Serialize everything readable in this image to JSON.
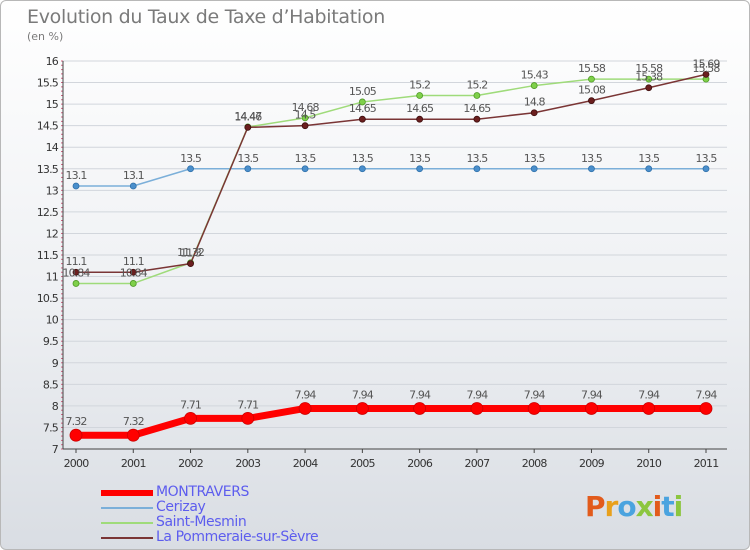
{
  "title": "Evolution du Taux de Taxe d’Habitation",
  "subtitle": "(en %)",
  "logo": {
    "text": "Proxiti",
    "colors": [
      "#e25b1c",
      "#e8a01c",
      "#4aa3df",
      "#8cc63f",
      "#e25b1c",
      "#4aa3df",
      "#8cc63f"
    ]
  },
  "chart_data": {
    "type": "line",
    "x": [
      "2000",
      "2001",
      "2002",
      "2003",
      "2004",
      "2005",
      "2006",
      "2007",
      "2008",
      "2009",
      "2010",
      "2011"
    ],
    "y_ticks": [
      7,
      7.5,
      8,
      8.5,
      9,
      9.5,
      10,
      10.5,
      11,
      11.5,
      12,
      12.5,
      13,
      13.5,
      14,
      14.5,
      15,
      15.5,
      16
    ],
    "ylim": [
      7,
      16
    ],
    "grid": "horizontal",
    "legend": "bottom-left",
    "series": [
      {
        "name": "MONTRAVERS",
        "color": "#ff0000",
        "values": [
          7.32,
          7.32,
          7.71,
          7.71,
          7.94,
          7.94,
          7.94,
          7.94,
          7.94,
          7.94,
          7.94,
          7.94
        ],
        "labels": [
          "7.32",
          "7.32",
          "7.71",
          "7.71",
          "7.94",
          "7.94",
          "7.94",
          "7.94",
          "7.94",
          "7.94",
          "7.94",
          "7.94"
        ]
      },
      {
        "name": "Cerizay",
        "color": "#7bafd9",
        "values": [
          13.1,
          13.1,
          13.5,
          13.5,
          13.5,
          13.5,
          13.5,
          13.5,
          13.5,
          13.5,
          13.5,
          13.5
        ],
        "labels": [
          "13.1",
          "13.1",
          "13.5",
          "13.5",
          "13.5",
          "13.5",
          "13.5",
          "13.5",
          "13.5",
          "13.5",
          "13.5",
          "13.5"
        ]
      },
      {
        "name": "Saint-Mesmin",
        "color": "#9fdb7a",
        "values": [
          10.84,
          10.84,
          11.32,
          14.47,
          14.68,
          15.05,
          15.2,
          15.2,
          15.43,
          15.58,
          15.58,
          15.58
        ],
        "labels": [
          "10.84",
          "10.84",
          "11.32",
          "14.47",
          "14.68",
          "15.05",
          "15.2",
          "15.2",
          "15.43",
          "15.58",
          "15.58",
          "15.58"
        ]
      },
      {
        "name": "La Pommeraie-sur-Sèvre",
        "color": "#7a3535",
        "values": [
          11.1,
          11.1,
          11.3,
          14.46,
          14.5,
          14.65,
          14.65,
          14.65,
          14.8,
          15.08,
          15.38,
          15.69
        ],
        "labels": [
          "11.1",
          "11.1",
          "11.3",
          "14.46",
          "14.5",
          "14.65",
          "14.65",
          "14.65",
          "14.8",
          "15.08",
          "15.38",
          "15.69"
        ]
      }
    ]
  }
}
